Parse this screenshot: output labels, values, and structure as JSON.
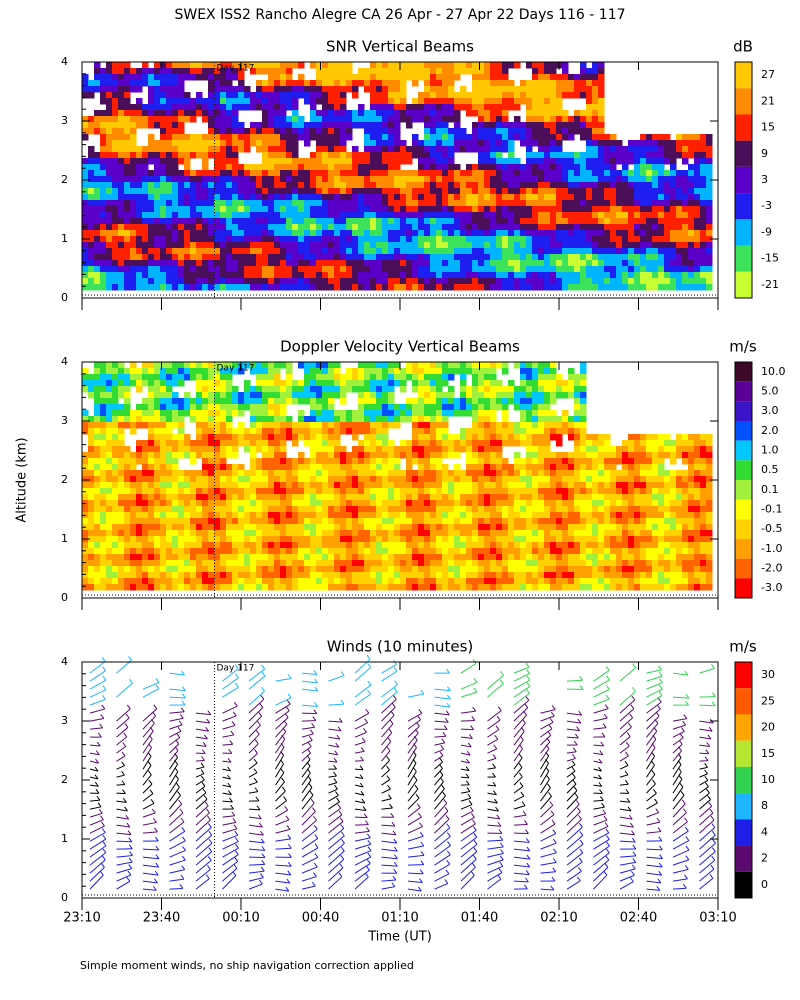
{
  "title": "SWEX ISS2 Rancho Alegre CA  26 Apr - 27 Apr 22 Days 116 - 117",
  "y_label": "Altitude (km)",
  "footnote": "Simple moment winds, no ship navigation correction applied",
  "chart_data": [
    {
      "type": "contour",
      "title": "SNR Vertical Beams",
      "ylim": [
        0,
        4
      ],
      "yticks": [
        0,
        1,
        2,
        3,
        4
      ],
      "xlim": [
        0,
        240
      ],
      "annotation": {
        "text": "Day 117",
        "x": 50
      },
      "colorbar": {
        "label": "dB",
        "ticks": [
          27,
          21,
          15,
          9,
          3,
          -3,
          -9,
          -15,
          -21
        ],
        "colors": [
          "#ffc800",
          "#ff8c00",
          "#ff2000",
          "#4b0f5a",
          "#5a00c8",
          "#1e1ef0",
          "#00b4ff",
          "#3ce35a",
          "#c8ff32"
        ]
      }
    },
    {
      "type": "contour",
      "title": "Doppler Velocity Vertical Beams",
      "ylim": [
        0,
        4
      ],
      "yticks": [
        0,
        1,
        2,
        3,
        4
      ],
      "xlim": [
        0,
        240
      ],
      "annotation": {
        "text": "Day 117",
        "x": 50
      },
      "colorbar": {
        "label": "m/s",
        "ticks": [
          {
            "value": 10,
            "label": "10.0"
          },
          {
            "value": 5,
            "label": "5.0"
          },
          {
            "value": 3,
            "label": "3.0"
          },
          {
            "value": 2,
            "label": "2.0"
          },
          {
            "value": 1,
            "label": "1.0"
          },
          0.5,
          0.1,
          -0.1,
          -0.5,
          {
            "value": -1,
            "label": "-1.0"
          },
          {
            "value": -2,
            "label": "-2.0"
          },
          {
            "value": -3,
            "label": "-3.0"
          }
        ],
        "colors": [
          "#3c0a28",
          "#5a0096",
          "#3c14c8",
          "#0050ff",
          "#00c8ff",
          "#32dc32",
          "#a0f03c",
          "#ffff00",
          "#ffd200",
          "#ffa000",
          "#ff6400",
          "#ff0000"
        ]
      }
    },
    {
      "type": "barbs",
      "title": "Winds (10 minutes)",
      "ylim": [
        0,
        4
      ],
      "yticks": [
        0,
        1,
        2,
        3,
        4
      ],
      "xlim": [
        0,
        240
      ],
      "annotation": {
        "text": "Day 117",
        "x": 50
      },
      "x_label": "Time (UT)",
      "xticks": [
        {
          "value": 0,
          "label": "23:10"
        },
        {
          "value": 30,
          "label": "23:40"
        },
        {
          "value": 60,
          "label": "00:10"
        },
        {
          "value": 90,
          "label": "00:40"
        },
        {
          "value": 120,
          "label": "01:10"
        },
        {
          "value": 150,
          "label": "01:40"
        },
        {
          "value": 180,
          "label": "02:10"
        },
        {
          "value": 210,
          "label": "02:40"
        },
        {
          "value": 240,
          "label": "03:10"
        }
      ],
      "colorbar": {
        "label": "m/s",
        "ticks": [
          30,
          25,
          20,
          15,
          10,
          8,
          4,
          2,
          0
        ],
        "colors": [
          "#ff0000",
          "#ff5a00",
          "#ffa500",
          "#b4e632",
          "#32d250",
          "#1eb4ff",
          "#1e1ee6",
          "#5a0a6e",
          "#000000"
        ]
      }
    }
  ]
}
